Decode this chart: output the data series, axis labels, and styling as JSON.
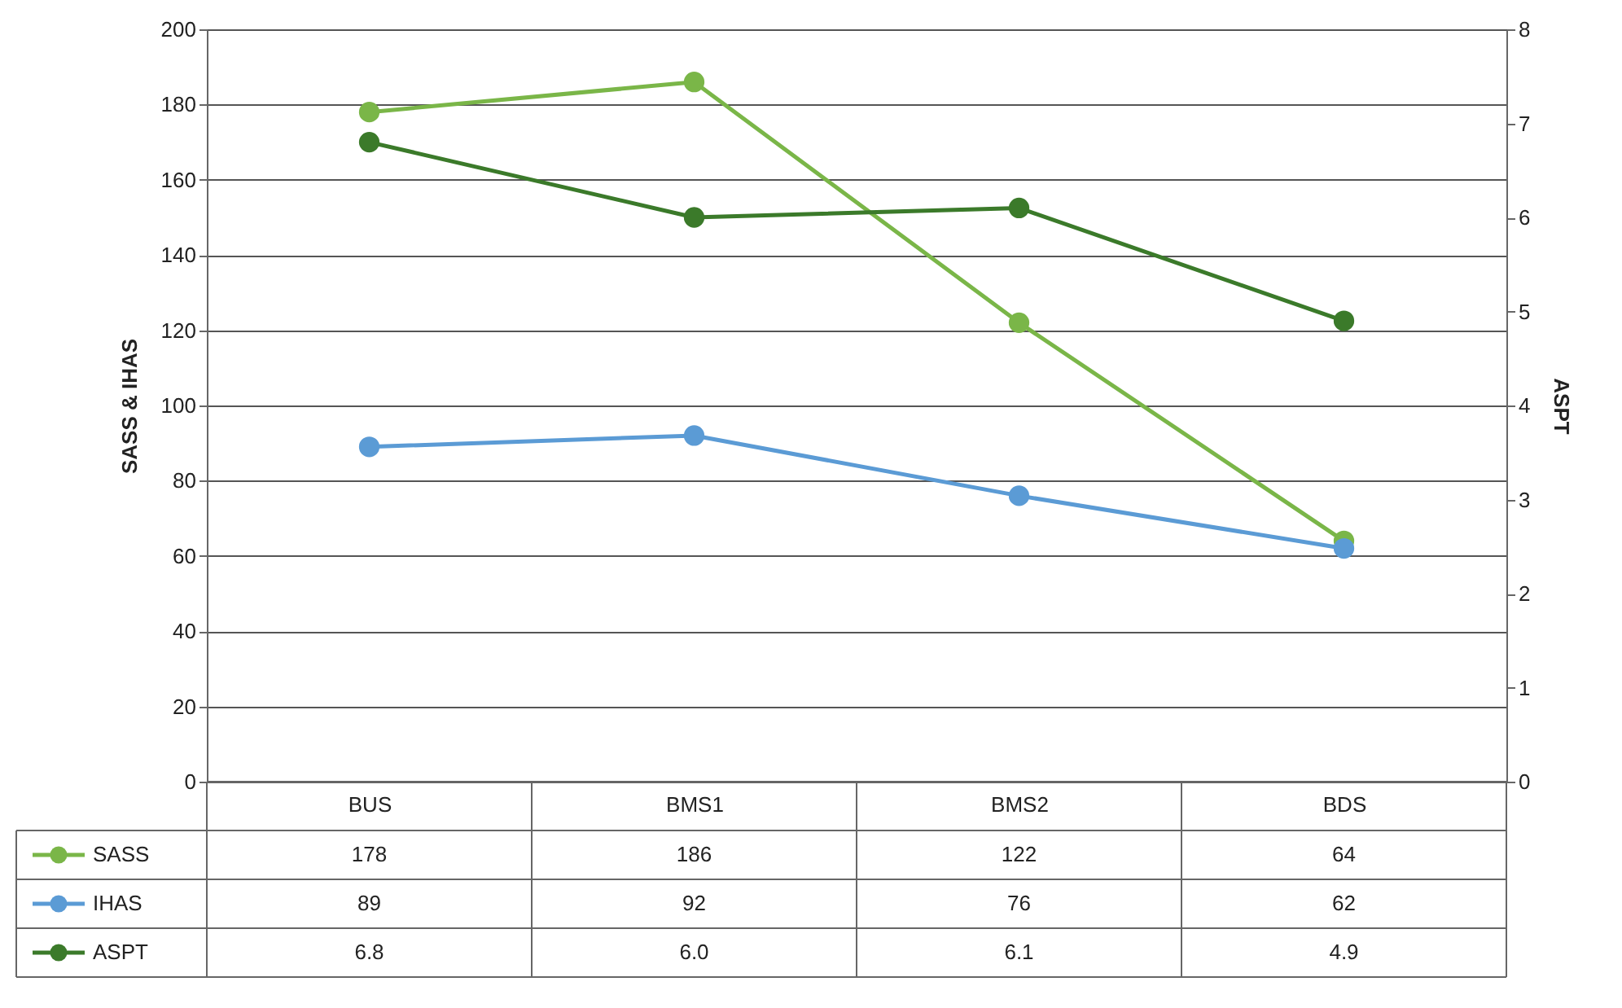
{
  "chart_data": {
    "type": "line",
    "ylabel": "SASS & IHAS",
    "y2label": "ASPT",
    "categories": [
      "BUS",
      "BMS1",
      "BMS2",
      "BDS"
    ],
    "series": [
      {
        "name": "SASS",
        "color": "#7ab648",
        "values": [
          178,
          186,
          122,
          64
        ],
        "value_labels": [
          "178",
          "186",
          "122",
          "64"
        ]
      },
      {
        "name": "IHAS",
        "color": "#5b9bd5",
        "values": [
          89,
          92,
          76,
          62
        ],
        "value_labels": [
          "89",
          "92",
          "76",
          "62"
        ]
      },
      {
        "name": "ASPT",
        "color": "#3b7a2a",
        "axis": "y2",
        "values": [
          6.8,
          6.0,
          6.1,
          4.9
        ],
        "value_labels": [
          "6.8",
          "6.0",
          "6.1",
          "4.9"
        ]
      }
    ],
    "ylim": [
      0,
      200
    ],
    "yticks": [
      0,
      20,
      40,
      60,
      80,
      100,
      120,
      140,
      160,
      180,
      200
    ],
    "y2lim": [
      0,
      8
    ],
    "y2ticks": [
      0,
      1,
      2,
      3,
      4,
      5,
      6,
      7,
      8
    ],
    "grid": "y",
    "legend": "bottom",
    "marker": "circle",
    "line_style": "solid"
  }
}
